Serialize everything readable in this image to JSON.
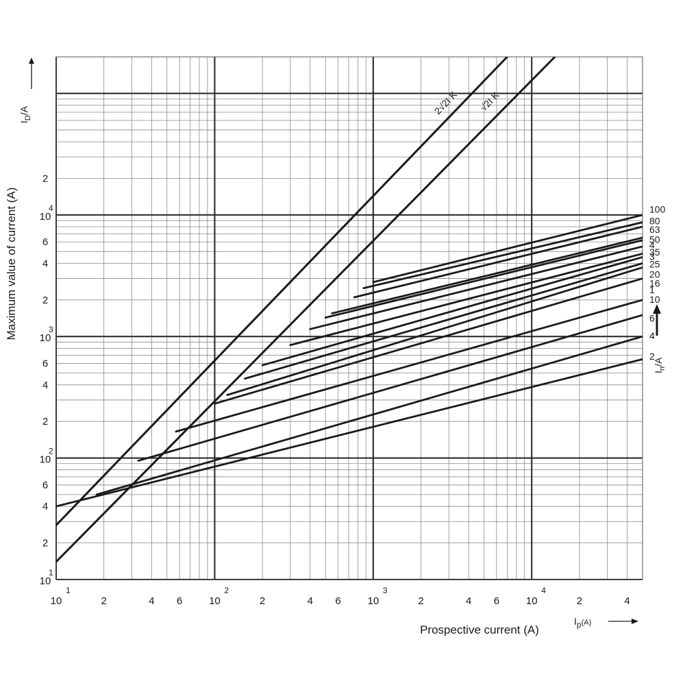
{
  "chart_data": {
    "type": "line",
    "title": "",
    "xlabel": "Prospective current (A)",
    "ylabel": "Maximum value of current (A)",
    "x_unit_label": {
      "sym": "I",
      "sub": "p",
      "unit": "(A)"
    },
    "y_unit_label": {
      "sym": "I",
      "sub": "D",
      "unit": "/A"
    },
    "in_label": {
      "sym": "I",
      "sub": "n",
      "unit": "/A"
    },
    "x_scale": "log",
    "y_scale": "log",
    "xlim": [
      10,
      50000
    ],
    "ylim": [
      10,
      200000
    ],
    "grid": true,
    "x_ticks": [
      {
        "v": 10,
        "base": "10",
        "exp": "1"
      },
      {
        "v": 20,
        "base": "2",
        "exp": ""
      },
      {
        "v": 40,
        "base": "4",
        "exp": ""
      },
      {
        "v": 60,
        "base": "6",
        "exp": ""
      },
      {
        "v": 100,
        "base": "10",
        "exp": "2"
      },
      {
        "v": 200,
        "base": "2",
        "exp": ""
      },
      {
        "v": 400,
        "base": "4",
        "exp": ""
      },
      {
        "v": 600,
        "base": "6",
        "exp": ""
      },
      {
        "v": 1000,
        "base": "10",
        "exp": "3"
      },
      {
        "v": 2000,
        "base": "2",
        "exp": ""
      },
      {
        "v": 4000,
        "base": "4",
        "exp": ""
      },
      {
        "v": 6000,
        "base": "6",
        "exp": ""
      },
      {
        "v": 10000,
        "base": "10",
        "exp": "4"
      },
      {
        "v": 20000,
        "base": "2",
        "exp": ""
      },
      {
        "v": 40000,
        "base": "4",
        "exp": ""
      }
    ],
    "y_ticks": [
      {
        "v": 10,
        "base": "10",
        "exp": "1"
      },
      {
        "v": 20,
        "base": "2",
        "exp": ""
      },
      {
        "v": 40,
        "base": "4",
        "exp": ""
      },
      {
        "v": 60,
        "base": "6",
        "exp": ""
      },
      {
        "v": 100,
        "base": "10",
        "exp": "2"
      },
      {
        "v": 200,
        "base": "2",
        "exp": ""
      },
      {
        "v": 400,
        "base": "4",
        "exp": ""
      },
      {
        "v": 600,
        "base": "6",
        "exp": ""
      },
      {
        "v": 1000,
        "base": "10",
        "exp": "3"
      },
      {
        "v": 2000,
        "base": "2",
        "exp": ""
      },
      {
        "v": 4000,
        "base": "4",
        "exp": ""
      },
      {
        "v": 6000,
        "base": "6",
        "exp": ""
      },
      {
        "v": 10000,
        "base": "10",
        "exp": "4"
      },
      {
        "v": 20000,
        "base": "2",
        "exp": ""
      }
    ],
    "envelopes": [
      {
        "label": "2√2I K",
        "x": [
          10,
          7000
        ],
        "y": [
          28,
          200000
        ]
      },
      {
        "label": "√2I K",
        "x": [
          10,
          14000
        ],
        "y": [
          14,
          200000
        ]
      }
    ],
    "series": [
      {
        "name": "100",
        "x_start": 1000,
        "y_start": 2800,
        "y_end": 10000
      },
      {
        "name": "80",
        "x_start": 870,
        "y_start": 2500,
        "y_end": 8700
      },
      {
        "name": "63",
        "x_start": 760,
        "y_start": 2100,
        "y_end": 8000
      },
      {
        "name": "50",
        "x_start": 550,
        "y_start": 1550,
        "y_end": 6500
      },
      {
        "name": "4",
        "x_start": 500,
        "y_start": 1430,
        "y_end": 6200
      },
      {
        "name": "35",
        "x_start": 400,
        "y_start": 1150,
        "y_end": 5500
      },
      {
        "name": "3",
        "x_start": 300,
        "y_start": 850,
        "y_end": 4800
      },
      {
        "name": "25",
        "x_start": 200,
        "y_start": 580,
        "y_end": 4500
      },
      {
        "name": "20",
        "x_start": 155,
        "y_start": 450,
        "y_end": 4000
      },
      {
        "name": "16",
        "x_start": 120,
        "y_start": 330,
        "y_end": 3700
      },
      {
        "name": "1",
        "x_start": 100,
        "y_start": 280,
        "y_end": 3000
      },
      {
        "name": "10",
        "x_start": 57,
        "y_start": 165,
        "y_end": 2000
      },
      {
        "name": "6",
        "x_start": 33,
        "y_start": 95,
        "y_end": 1500
      },
      {
        "name": "4",
        "x_start": 18,
        "y_start": 50,
        "y_end": 1000
      },
      {
        "name": "2",
        "x_start": 10,
        "y_start": 40,
        "y_end": 650
      }
    ],
    "series_labels": [
      {
        "text": "100",
        "y": 11000
      },
      {
        "text": "80",
        "y": 8800
      },
      {
        "text": "63",
        "y": 7500
      },
      {
        "text": "50",
        "y": 6200
      },
      {
        "text": "4",
        "y": 5600
      },
      {
        "text": "35",
        "y": 4900
      },
      {
        "text": "3",
        "y": 4500
      },
      {
        "text": "25",
        "y": 3900
      },
      {
        "text": "20",
        "y": 3200
      },
      {
        "text": "16",
        "y": 2700
      },
      {
        "text": "1",
        "y": 2400
      },
      {
        "text": "10",
        "y": 2000
      },
      {
        "text": "6",
        "y": 1400
      },
      {
        "text": "4",
        "y": 1000
      },
      {
        "text": "2",
        "y": 680
      }
    ]
  }
}
